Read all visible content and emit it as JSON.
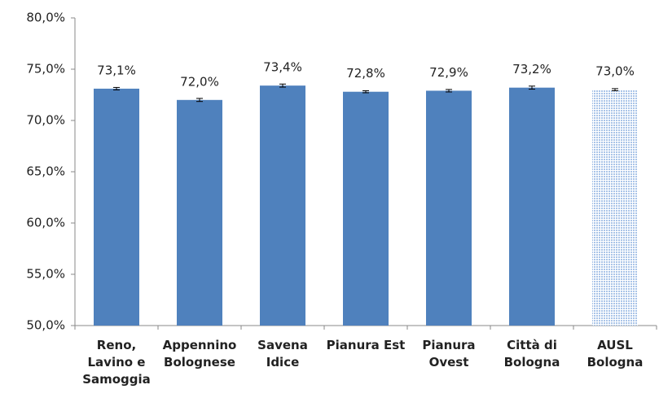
{
  "chart_data": {
    "type": "bar",
    "categories": [
      "Reno, Lavino e Samoggia",
      "Appennino Bolognese",
      "Savena Idice",
      "Pianura Est",
      "Pianura Ovest",
      "Città di Bologna",
      "AUSL Bologna"
    ],
    "values": [
      73.1,
      72.0,
      73.4,
      72.8,
      72.9,
      73.2,
      73.0
    ],
    "value_labels": [
      "73,1%",
      "72,0%",
      "73,4%",
      "72,8%",
      "72,9%",
      "73,2%",
      "73,0%"
    ],
    "errors": [
      0.12,
      0.15,
      0.15,
      0.1,
      0.12,
      0.15,
      0.1
    ],
    "colors": [
      "#4f81bd",
      "#4f81bd",
      "#4f81bd",
      "#4f81bd",
      "#4f81bd",
      "#4f81bd",
      "#a9c4e8"
    ],
    "bar_styles": [
      "solid",
      "solid",
      "solid",
      "solid",
      "solid",
      "solid",
      "hatched"
    ],
    "ylim": [
      50,
      80
    ],
    "yticks": [
      {
        "value": 50,
        "label": "50,0%"
      },
      {
        "value": 55,
        "label": "55,0%"
      },
      {
        "value": 60,
        "label": "60,0%"
      },
      {
        "value": 65,
        "label": "65,0%"
      },
      {
        "value": 70,
        "label": "70,0%"
      },
      {
        "value": 75,
        "label": "75,0%"
      },
      {
        "value": 80,
        "label": "80,0%"
      }
    ],
    "grid": false
  }
}
